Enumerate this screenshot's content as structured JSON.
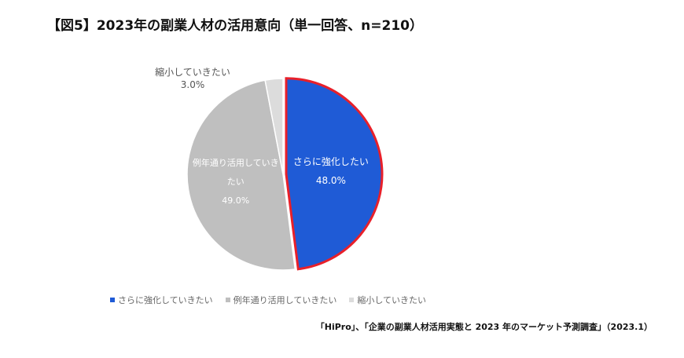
{
  "chart_data": {
    "type": "pie",
    "title": "【図5】2023年の副業人材の活用意向（単一回答、n=210）",
    "categories": [
      "さらに強化していきたい",
      "例年通り活用していきたい",
      "縮小していきたい"
    ],
    "slice_labels": [
      "さらに強化したい",
      "例年通り活用していきたい",
      "縮小していきたい"
    ],
    "values": [
      48.0,
      49.0,
      3.0
    ],
    "value_labels": [
      "48.0%",
      "49.0%",
      "3.0%"
    ],
    "colors": [
      "#1f5bd6",
      "#bfbfbf",
      "#dcdcdc"
    ],
    "highlight": {
      "index": 0,
      "color": "#e8202a"
    },
    "legend": "bottom",
    "source": "「HiPro」、「企業の副業人材活用実態と 2023 年のマーケット予測調査」（2023.1）"
  }
}
